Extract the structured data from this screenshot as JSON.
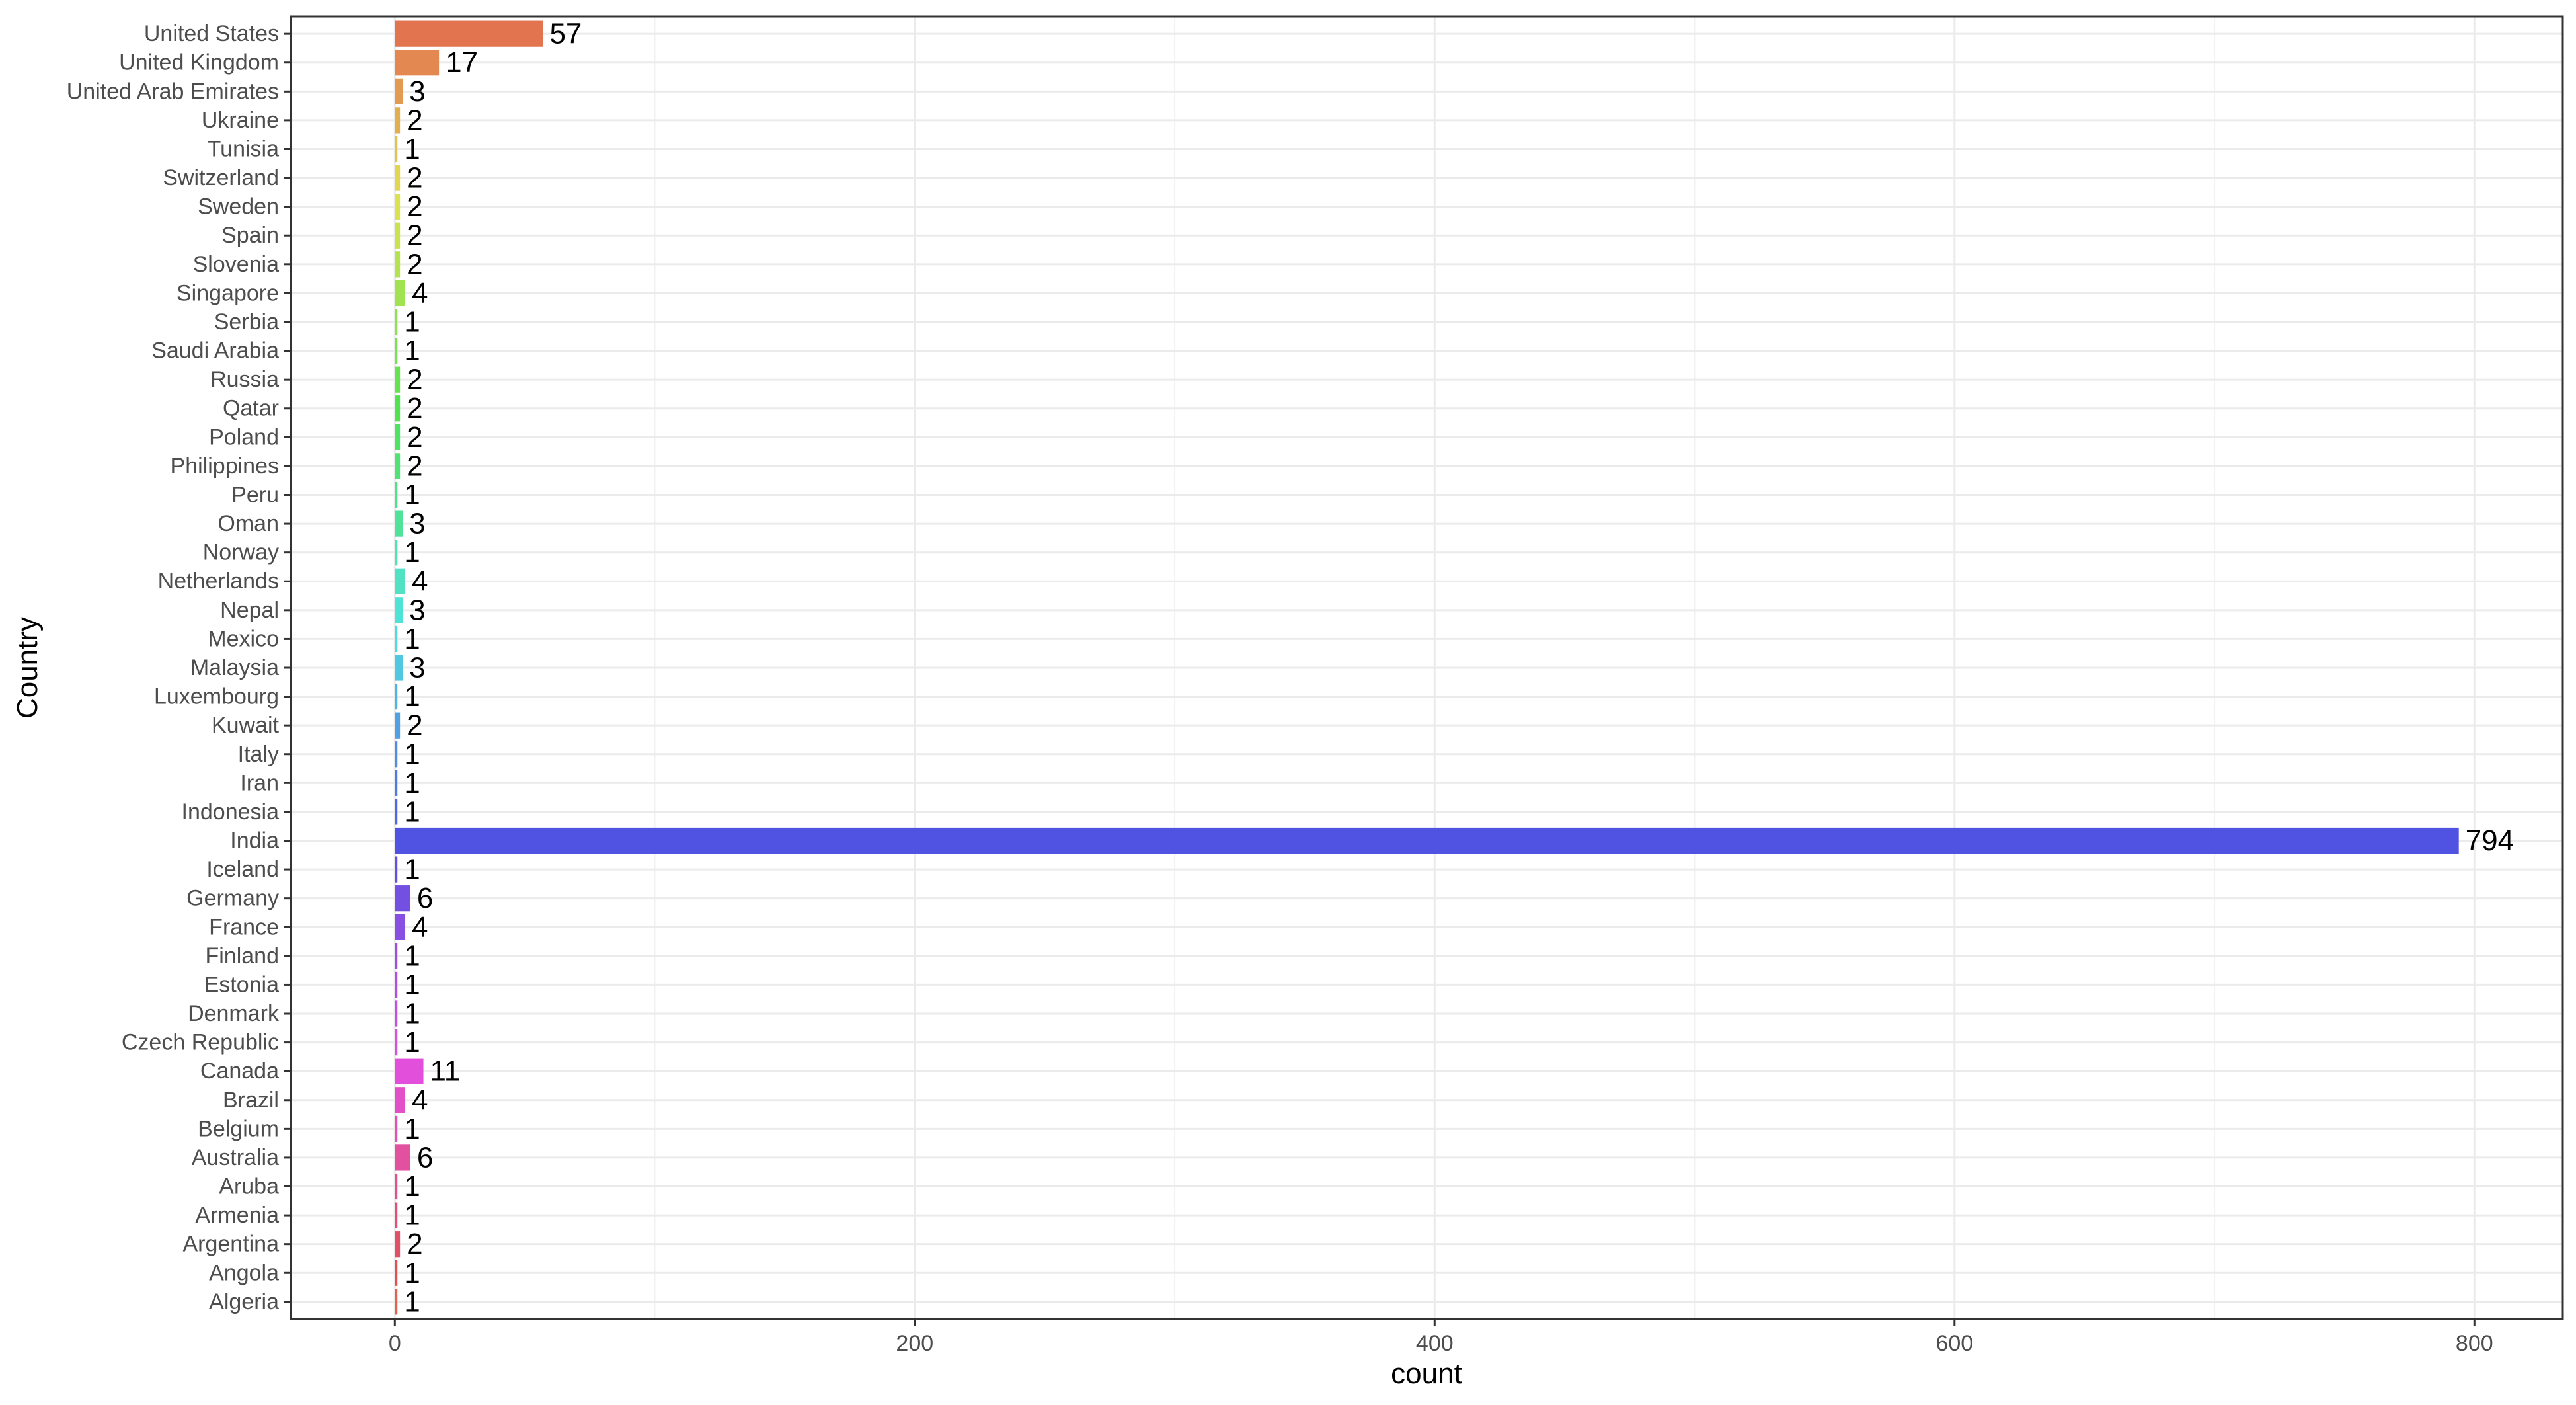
{
  "chart_data": {
    "type": "bar",
    "orientation": "horizontal",
    "xlabel": "count",
    "ylabel": "Country",
    "xlim": [
      -40,
      834
    ],
    "x_ticks": [
      0,
      200,
      400,
      600,
      800
    ],
    "grid": true,
    "legend": "none",
    "categories": [
      "United States",
      "United Kingdom",
      "United Arab Emirates",
      "Ukraine",
      "Tunisia",
      "Switzerland",
      "Sweden",
      "Spain",
      "Slovenia",
      "Singapore",
      "Serbia",
      "Saudi Arabia",
      "Russia",
      "Qatar",
      "Poland",
      "Philippines",
      "Peru",
      "Oman",
      "Norway",
      "Netherlands",
      "Nepal",
      "Mexico",
      "Malaysia",
      "Luxembourg",
      "Kuwait",
      "Italy",
      "Iran",
      "Indonesia",
      "India",
      "Iceland",
      "Germany",
      "France",
      "Finland",
      "Estonia",
      "Denmark",
      "Czech Republic",
      "Canada",
      "Brazil",
      "Belgium",
      "Australia",
      "Aruba",
      "Armenia",
      "Argentina",
      "Angola",
      "Algeria"
    ],
    "values": [
      57,
      17,
      3,
      2,
      1,
      2,
      2,
      2,
      2,
      4,
      1,
      1,
      2,
      2,
      2,
      2,
      1,
      3,
      1,
      4,
      3,
      1,
      3,
      1,
      2,
      1,
      1,
      1,
      794,
      1,
      6,
      4,
      1,
      1,
      1,
      1,
      11,
      4,
      1,
      6,
      1,
      1,
      2,
      1,
      1
    ]
  }
}
